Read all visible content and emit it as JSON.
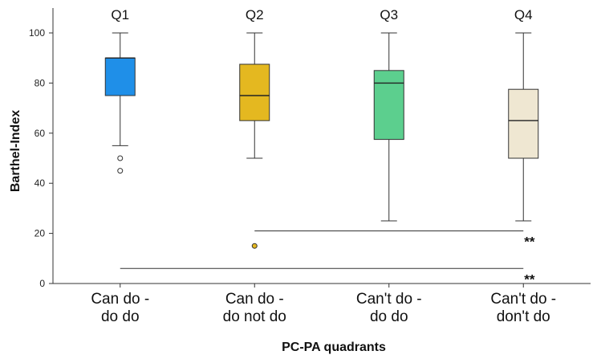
{
  "chart_data": {
    "type": "box",
    "xlabel": "PC-PA quadrants",
    "ylabel": "Barthel-Index",
    "ylim": [
      0,
      110
    ],
    "yticks": [
      0,
      20,
      40,
      60,
      80,
      100
    ],
    "grid": false,
    "legend": "none",
    "categories": [
      {
        "lines": [
          "Can do -",
          "do do"
        ],
        "quadrant": "Q1"
      },
      {
        "lines": [
          "Can do -",
          "do not do"
        ],
        "quadrant": "Q2"
      },
      {
        "lines": [
          "Can't do -",
          "do do"
        ],
        "quadrant": "Q3"
      },
      {
        "lines": [
          "Can't do -",
          "don't do"
        ],
        "quadrant": "Q4"
      }
    ],
    "boxes": [
      {
        "min": 55,
        "q1": 75,
        "median": 90,
        "q3": 90,
        "max": 100,
        "outliers": [
          50,
          45
        ],
        "color": "#1f8fe8"
      },
      {
        "min": 50,
        "q1": 65,
        "median": 75,
        "q3": 87.5,
        "max": 100,
        "outliers": [
          15
        ],
        "color": "#e4b820"
      },
      {
        "min": 25,
        "q1": 57.5,
        "median": 80,
        "q3": 85,
        "max": 100,
        "outliers": [],
        "color": "#5ccf8e"
      },
      {
        "min": 25,
        "q1": 50,
        "median": 65,
        "q3": 77.5,
        "max": 100,
        "outliers": [],
        "color": "#efe7d2"
      }
    ],
    "significance": [
      {
        "from": 1,
        "to": 3,
        "y": 21,
        "label": "**"
      },
      {
        "from": 0,
        "to": 3,
        "y": 6,
        "label": "**"
      }
    ]
  }
}
